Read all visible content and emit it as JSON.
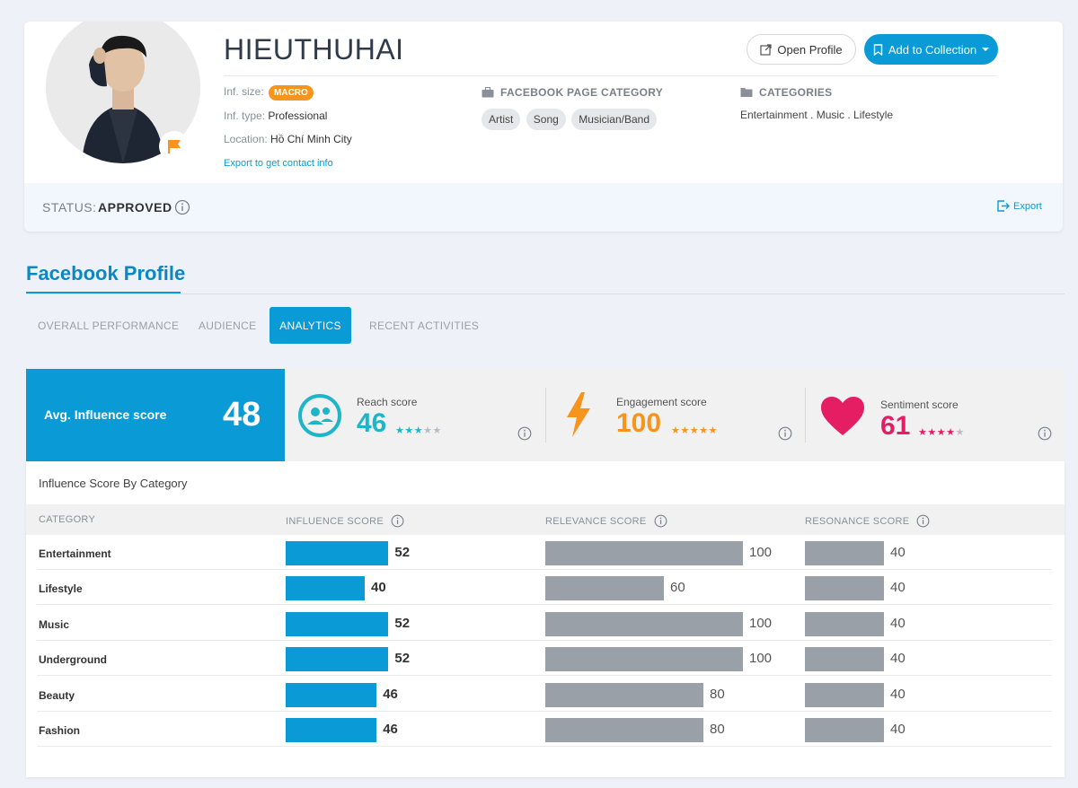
{
  "profile": {
    "name": "HIEUTHUHAI",
    "open_profile_label": "Open Profile",
    "add_collection_label": "Add to Collection",
    "inf_size_label": "Inf. size:",
    "inf_size_badge": "MACRO",
    "inf_type_label": "Inf. type:",
    "inf_type_value": "Professional",
    "location_label": "Location:",
    "location_value": "Hồ Chí Minh City",
    "export_contact": "Export to get contact info",
    "fb_page_category_heading": "FACEBOOK PAGE CATEGORY",
    "fb_page_tags": [
      "Artist",
      "Song",
      "Musician/Band"
    ],
    "categories_heading": "CATEGORIES",
    "categories_value": "Entertainment . Music . Lifestyle",
    "icons": [
      "external-link-icon",
      "bookmark-icon",
      "caret-down-icon",
      "briefcase-icon",
      "folder-icon",
      "flag-icon"
    ]
  },
  "status": {
    "label": "STATUS:",
    "value": "APPROVED",
    "export_label": "Export"
  },
  "section": {
    "title": "Facebook Profile",
    "tabs": [
      {
        "label": "OVERALL PERFORMANCE",
        "active": false
      },
      {
        "label": "AUDIENCE",
        "active": false
      },
      {
        "label": "ANALYTICS",
        "active": true
      },
      {
        "label": "RECENT ACTIVITIES",
        "active": false
      }
    ]
  },
  "scores": {
    "avg_label": "Avg. Influence score",
    "avg_value": "48",
    "reach": {
      "label": "Reach score",
      "value": "46",
      "stars": 3,
      "color": "#1fb5c9"
    },
    "engagement": {
      "label": "Engagement score",
      "value": "100",
      "stars": 5,
      "color": "#f7941d"
    },
    "sentiment": {
      "label": "Sentiment score",
      "value": "61",
      "stars": 4,
      "color": "#e51e63"
    }
  },
  "table": {
    "title": "Influence Score By Category",
    "headers": {
      "category": "CATEGORY",
      "influence": "INFLUENCE SCORE",
      "relevance": "RELEVANCE SCORE",
      "resonance": "RESONANCE SCORE"
    },
    "rows": [
      {
        "category": "Entertainment",
        "influence": 52,
        "relevance": 100,
        "resonance": 40
      },
      {
        "category": "Lifestyle",
        "influence": 40,
        "relevance": 60,
        "resonance": 40
      },
      {
        "category": "Music",
        "influence": 52,
        "relevance": 100,
        "resonance": 40
      },
      {
        "category": "Underground",
        "influence": 52,
        "relevance": 100,
        "resonance": 40
      },
      {
        "category": "Beauty",
        "influence": 46,
        "relevance": 80,
        "resonance": 40
      },
      {
        "category": "Fashion",
        "influence": 46,
        "relevance": 80,
        "resonance": 40
      }
    ]
  },
  "colors": {
    "accent": "#0a9ad6",
    "macro_badge": "#f7941d",
    "bar_gray": "#9aa0a8"
  }
}
